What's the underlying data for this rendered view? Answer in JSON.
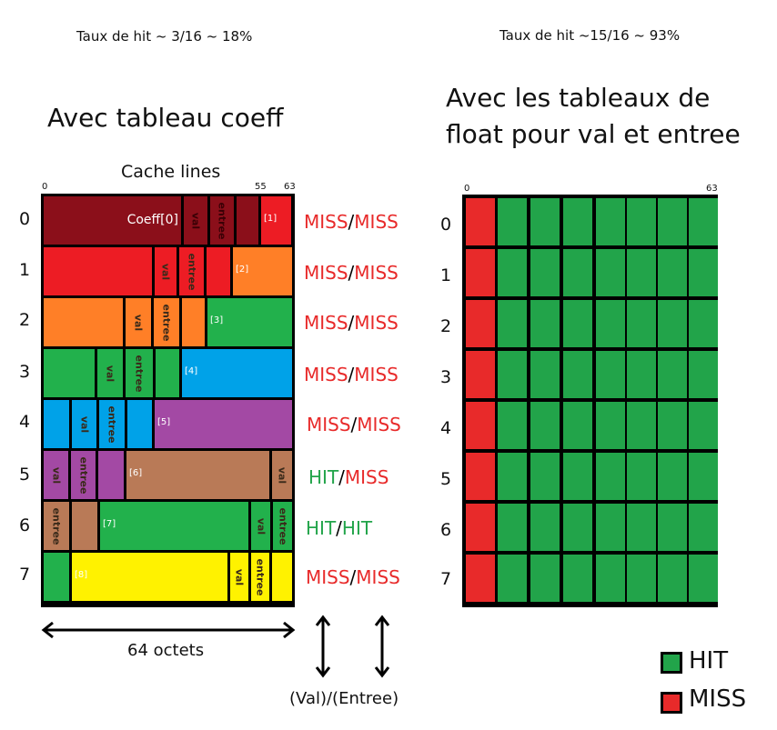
{
  "left": {
    "hit_rate": "Taux de hit ~ 3/16 ~ 18%",
    "title": "Avec tableau coeff",
    "caption": "Cache lines",
    "ticks": [
      "0",
      "55",
      "63"
    ],
    "bottom_label": "64 octets",
    "arrows_label": "(Val)/(Entree)",
    "coeff_label": "Coeff[0]",
    "rows": [
      {
        "index": "0",
        "s1": "MISS",
        "s2": "MISS",
        "c1": "#e82a2a",
        "c2": "#e82a2a",
        "tag": "[1]"
      },
      {
        "index": "1",
        "s1": "MISS",
        "s2": "MISS",
        "c1": "#e82a2a",
        "c2": "#e82a2a",
        "tag": "[2]"
      },
      {
        "index": "2",
        "s1": "MISS",
        "s2": "MISS",
        "c1": "#e82a2a",
        "c2": "#e82a2a",
        "tag": "[3]"
      },
      {
        "index": "3",
        "s1": "MISS",
        "s2": "MISS",
        "c1": "#e82a2a",
        "c2": "#e82a2a",
        "tag": "[4]"
      },
      {
        "index": "4",
        "s1": "MISS",
        "s2": "MISS",
        "c1": "#e82a2a",
        "c2": "#e82a2a",
        "tag": "[5]"
      },
      {
        "index": "5",
        "s1": "HIT",
        "s2": "MISS",
        "c1": "#22a44a",
        "c2": "#e82a2a",
        "tag": "[6]"
      },
      {
        "index": "6",
        "s1": "HIT",
        "s2": "HIT",
        "c1": "#22a44a",
        "c2": "#22a44a",
        "tag": "[7]"
      },
      {
        "index": "7",
        "s1": "MISS",
        "s2": "MISS",
        "c1": "#e82a2a",
        "c2": "#e82a2a",
        "tag": "[8]"
      }
    ],
    "val_label": "val",
    "entree_label": "entree",
    "slash": "/"
  },
  "right": {
    "hit_rate": "Taux de hit ~15/16 ~ 93%",
    "title_line1": "Avec les tableaux de",
    "title_line2": "float pour val et entree",
    "ticks": [
      "0",
      "63"
    ],
    "rows": [
      "0",
      "1",
      "2",
      "3",
      "4",
      "5",
      "6",
      "7"
    ]
  },
  "legend": {
    "hit": "HIT",
    "miss": "MISS",
    "hit_color": "#22a44a",
    "miss_color": "#e82a2a"
  },
  "colors": {
    "dark_red": "#8b0f1a",
    "red": "#ed1c24",
    "orange": "#ff7f27",
    "green": "#22b14c",
    "blue": "#00a2e8",
    "purple": "#a349a4",
    "brown": "#b97a57",
    "yellow": "#fff200"
  }
}
